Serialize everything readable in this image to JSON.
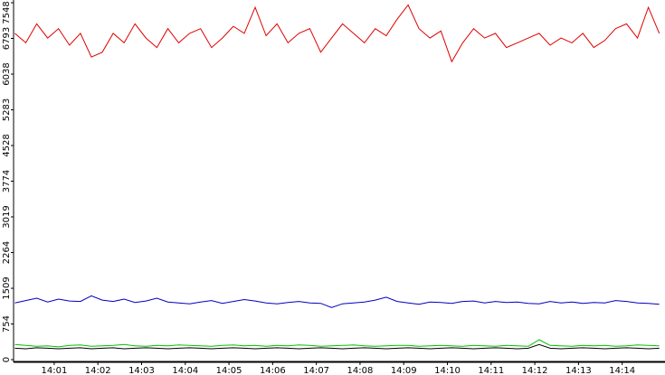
{
  "chart_data": {
    "type": "line",
    "x": [
      0.1,
      0.35,
      0.6,
      0.85,
      1.1,
      1.35,
      1.6,
      1.85,
      2.1,
      2.35,
      2.6,
      2.85,
      3.1,
      3.35,
      3.6,
      3.85,
      4.1,
      4.35,
      4.6,
      4.85,
      5.1,
      5.35,
      5.6,
      5.85,
      6.1,
      6.35,
      6.6,
      6.85,
      7.1,
      7.35,
      7.6,
      7.85,
      8.1,
      8.35,
      8.6,
      8.85,
      9.1,
      9.35,
      9.6,
      9.85,
      10.1,
      10.35,
      10.6,
      10.85,
      11.1,
      11.35,
      11.6,
      11.85,
      12.1,
      12.35,
      12.6,
      12.85,
      13.1,
      13.35,
      13.6,
      13.85,
      14.1,
      14.35,
      14.6,
      14.85
    ],
    "series": [
      {
        "color": "#e00000",
        "values": [
          6900,
          6700,
          7100,
          6800,
          7000,
          6650,
          6900,
          6400,
          6500,
          6900,
          6700,
          7100,
          6800,
          6600,
          7000,
          6700,
          6900,
          7000,
          6600,
          6800,
          7050,
          6900,
          7450,
          6850,
          7100,
          6700,
          6900,
          7000,
          6500,
          6800,
          7100,
          6900,
          6700,
          7000,
          6850,
          7200,
          7500,
          7000,
          6800,
          6950,
          6300,
          6700,
          7000,
          6800,
          6900,
          6600,
          6700,
          6800,
          6900,
          6650,
          6800,
          6700,
          6900,
          6600,
          6750,
          7000,
          7100,
          6800,
          7450,
          6900
        ]
      },
      {
        "color": "#0000c0",
        "values": [
          1200,
          1250,
          1300,
          1220,
          1280,
          1240,
          1230,
          1350,
          1260,
          1230,
          1280,
          1210,
          1240,
          1300,
          1220,
          1200,
          1180,
          1220,
          1250,
          1190,
          1230,
          1270,
          1240,
          1200,
          1180,
          1210,
          1230,
          1200,
          1190,
          1100,
          1180,
          1200,
          1220,
          1260,
          1320,
          1230,
          1200,
          1170,
          1220,
          1210,
          1190,
          1230,
          1240,
          1200,
          1230,
          1210,
          1220,
          1190,
          1180,
          1230,
          1200,
          1220,
          1190,
          1210,
          1200,
          1250,
          1230,
          1200,
          1190,
          1170
        ]
      },
      {
        "color": "#00c000",
        "values": [
          320,
          300,
          280,
          290,
          270,
          300,
          310,
          280,
          290,
          300,
          320,
          290,
          280,
          300,
          290,
          310,
          300,
          290,
          280,
          300,
          310,
          290,
          300,
          280,
          300,
          290,
          310,
          300,
          280,
          290,
          300,
          310,
          290,
          280,
          290,
          300,
          300,
          280,
          290,
          300,
          290,
          280,
          300,
          290,
          280,
          300,
          290,
          280,
          420,
          300,
          290,
          280,
          300,
          290,
          300,
          280,
          290,
          310,
          300,
          290
        ]
      },
      {
        "color": "#000000",
        "values": [
          240,
          230,
          250,
          240,
          230,
          240,
          250,
          230,
          240,
          250,
          230,
          240,
          250,
          240,
          230,
          240,
          250,
          240,
          230,
          240,
          250,
          240,
          230,
          240,
          250,
          240,
          230,
          240,
          250,
          240,
          230,
          240,
          250,
          240,
          230,
          240,
          250,
          240,
          230,
          240,
          250,
          240,
          230,
          240,
          250,
          240,
          230,
          240,
          320,
          240,
          230,
          240,
          250,
          240,
          230,
          240,
          250,
          240,
          230,
          240
        ]
      }
    ],
    "xlim": [
      0.07,
      14.98
    ],
    "xticks": [
      {
        "value": 1,
        "label": "14:01"
      },
      {
        "value": 2,
        "label": "14:02"
      },
      {
        "value": 3,
        "label": "14:03"
      },
      {
        "value": 4,
        "label": "14:04"
      },
      {
        "value": 5,
        "label": "14:05"
      },
      {
        "value": 6,
        "label": "14:06"
      },
      {
        "value": 7,
        "label": "14:07"
      },
      {
        "value": 8,
        "label": "14:08"
      },
      {
        "value": 9,
        "label": "14:09"
      },
      {
        "value": 10,
        "label": "14:10"
      },
      {
        "value": 11,
        "label": "14:11"
      },
      {
        "value": 12,
        "label": "14:12"
      },
      {
        "value": 13,
        "label": "14:13"
      },
      {
        "value": 14,
        "label": "14:14"
      }
    ],
    "ylim": [
      0,
      7548
    ],
    "yticks": [
      0,
      754,
      1509,
      2264,
      3019,
      3774,
      4528,
      5283,
      6038,
      6793,
      7548
    ]
  }
}
